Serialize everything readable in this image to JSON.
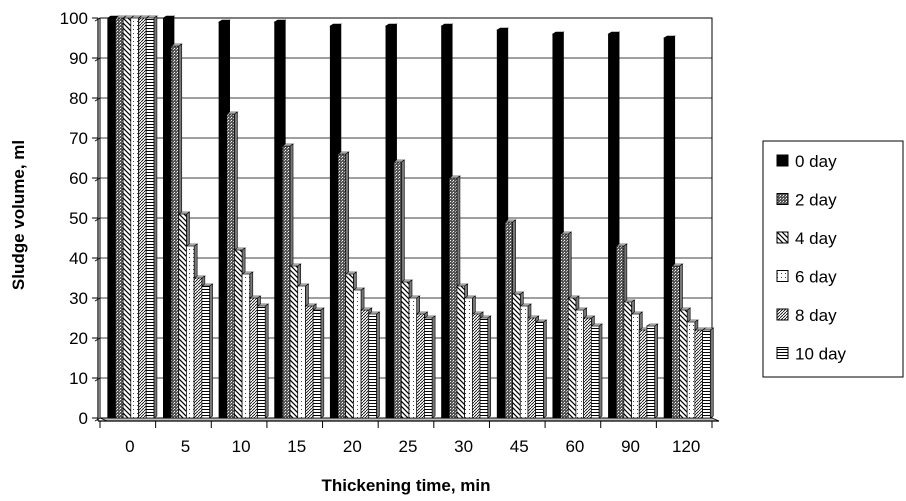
{
  "chart_data": {
    "type": "bar",
    "style": "3d-clustered-column",
    "xlabel": "Thickening time, min",
    "ylabel": "Sludge volume, ml",
    "ylim": [
      0,
      100
    ],
    "y_ticks": [
      "0",
      "10",
      "20",
      "30",
      "40",
      "50",
      "60",
      "70",
      "80",
      "90",
      "100"
    ],
    "categories": [
      "0",
      "5",
      "10",
      "15",
      "20",
      "25",
      "30",
      "45",
      "60",
      "90",
      "120"
    ],
    "grid": "horizontal",
    "legend_position": "right",
    "series": [
      {
        "name": "0 day",
        "pattern": "solid-black",
        "values": [
          100,
          100,
          99,
          99,
          98,
          98,
          98,
          97,
          96,
          96,
          95
        ]
      },
      {
        "name": "2 day",
        "pattern": "dark-dots",
        "values": [
          100,
          93,
          76,
          68,
          66,
          64,
          60,
          49,
          46,
          43,
          38
        ]
      },
      {
        "name": "4 day",
        "pattern": "diagonal-hatch",
        "values": [
          100,
          51,
          42,
          38,
          36,
          34,
          33,
          31,
          30,
          29,
          27
        ]
      },
      {
        "name": "6 day",
        "pattern": "sparse-dots",
        "values": [
          100,
          43,
          36,
          33,
          32,
          30,
          30,
          28,
          27,
          26,
          24
        ]
      },
      {
        "name": "8 day",
        "pattern": "fine-hatch",
        "values": [
          100,
          35,
          30,
          28,
          27,
          26,
          26,
          25,
          25,
          22,
          22
        ]
      },
      {
        "name": "10 day",
        "pattern": "horizontal-lines",
        "values": [
          100,
          33,
          28,
          27,
          26,
          25,
          25,
          24,
          23,
          23,
          22
        ]
      }
    ]
  }
}
